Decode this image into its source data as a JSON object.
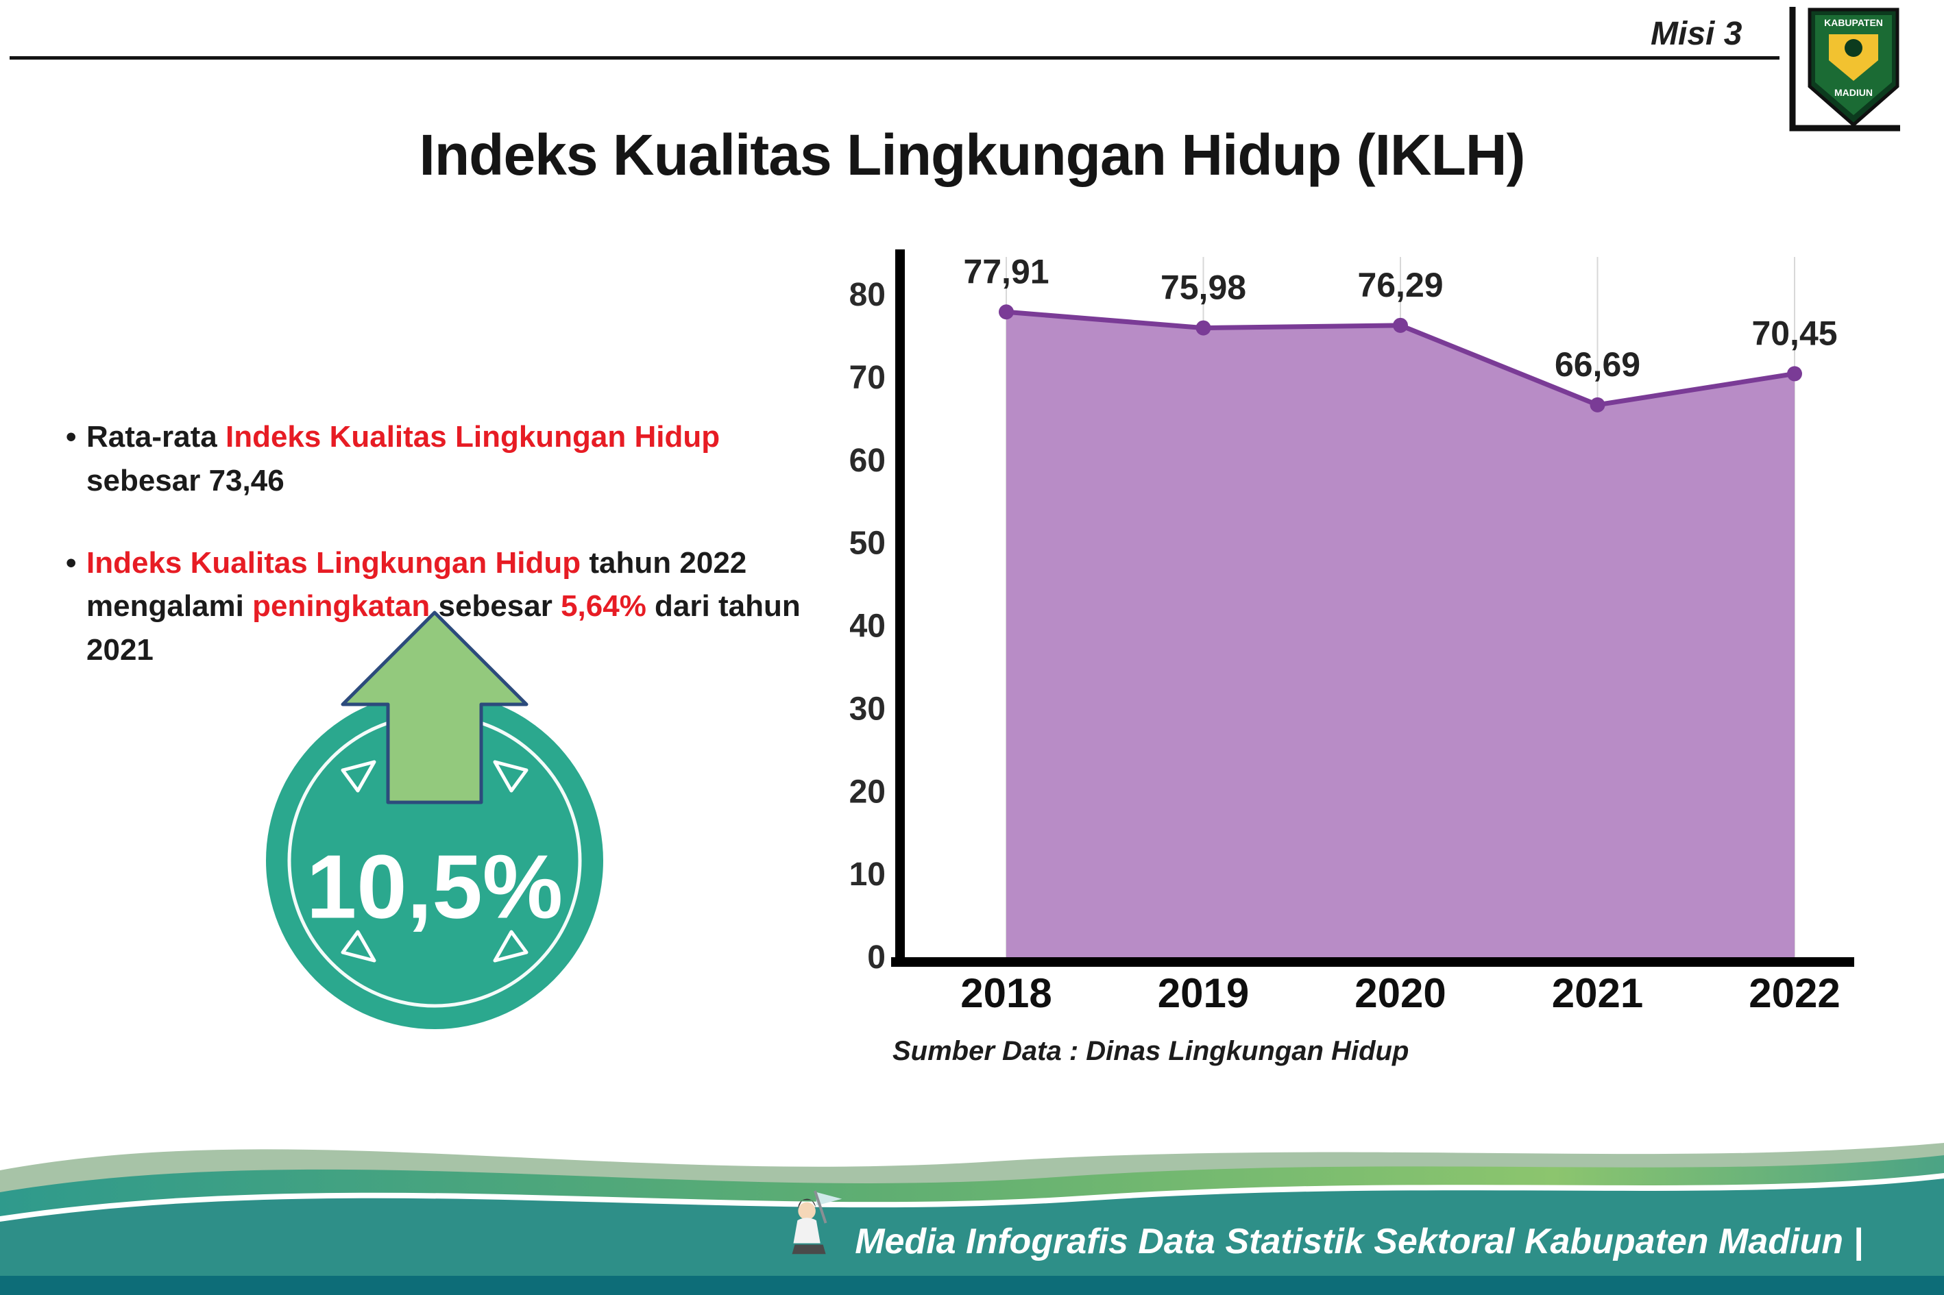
{
  "header": {
    "misi_label": "Misi 3",
    "title": "Indeks Kualitas Lingkungan Hidup (IKLH)",
    "logo": {
      "top_text": "KABUPATEN",
      "bottom_text": "MADIUN"
    }
  },
  "insights": {
    "bullet1": {
      "marker": "•",
      "seg_black1": "Rata-rata ",
      "seg_red": "Indeks Kualitas Lingkungan Hidup",
      "seg_black2": " sebesar 73,46"
    },
    "bullet2": {
      "marker": "•",
      "seg_red1": "Indeks Kualitas Lingkungan Hidup",
      "seg_black1": " tahun 2022 mengalami ",
      "seg_red2": "peningkatan",
      "seg_black2": " sebesar ",
      "seg_red3": "5,64%",
      "seg_black3": " dari tahun 2021"
    }
  },
  "badge": {
    "value": "10,5%"
  },
  "chart_data": {
    "type": "area",
    "categories": [
      "2018",
      "2019",
      "2020",
      "2021",
      "2022"
    ],
    "values": [
      77.91,
      75.98,
      76.29,
      66.69,
      70.45
    ],
    "point_labels": [
      "77,91",
      "75,98",
      "76,29",
      "66,69",
      "70,45"
    ],
    "title": "",
    "xlabel": "",
    "ylabel": "",
    "ylim": [
      0,
      80
    ],
    "yticks": [
      0,
      10,
      20,
      30,
      40,
      50,
      60,
      70,
      80
    ],
    "grid": "vertical",
    "legend": false,
    "line_color": "#7a3b96",
    "fill_color": "#b88cc6",
    "source_note": "Sumber Data : Dinas Lingkungan Hidup"
  },
  "footer": {
    "credit": "Media Infografis Data Statistik Sektoral Kabupaten Madiun |"
  },
  "colors": {
    "accent_red": "#e71c24",
    "badge_teal": "#2ba88e",
    "arrow_green": "#93c97d",
    "footer_teal": "#2e8f88",
    "footer_dark_strip": "#0d6d78"
  }
}
